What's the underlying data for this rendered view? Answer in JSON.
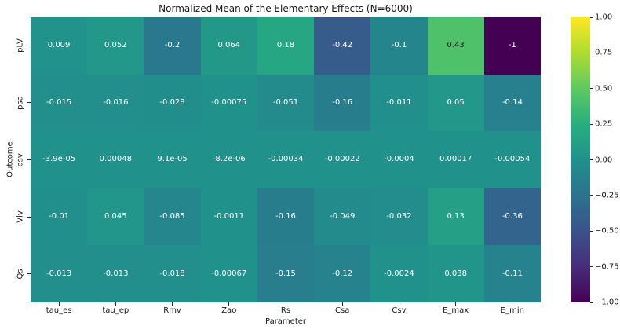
{
  "chart_data": {
    "type": "heatmap",
    "title": "Normalized Mean of the Elementary Effects (N=6000)",
    "xlabel": "Parameter",
    "ylabel": "Outcome",
    "x_categories": [
      "tau_es",
      "tau_ep",
      "Rmv",
      "Zao",
      "Rs",
      "Csa",
      "Csv",
      "E_max",
      "E_min"
    ],
    "y_categories": [
      "pLV",
      "psa",
      "psv",
      "Vlv",
      "Qs"
    ],
    "values": [
      [
        0.009,
        0.052,
        -0.2,
        0.064,
        0.18,
        -0.42,
        -0.1,
        0.43,
        -1
      ],
      [
        -0.015,
        -0.016,
        -0.028,
        -0.00075,
        -0.051,
        -0.16,
        -0.011,
        0.05,
        -0.14
      ],
      [
        -3.9e-05,
        0.00048,
        9.1e-05,
        -8.2e-06,
        -0.00034,
        -0.00022,
        -0.0004,
        0.00017,
        -0.00054
      ],
      [
        -0.01,
        0.045,
        -0.085,
        -0.0011,
        -0.16,
        -0.049,
        -0.032,
        0.13,
        -0.36
      ],
      [
        -0.013,
        -0.013,
        -0.018,
        -0.00067,
        -0.15,
        -0.12,
        -0.0024,
        0.038,
        -0.11
      ]
    ],
    "cell_labels": [
      [
        "0.009",
        "0.052",
        "-0.2",
        "0.064",
        "0.18",
        "-0.42",
        "-0.1",
        "0.43",
        "-1"
      ],
      [
        "-0.015",
        "-0.016",
        "-0.028",
        "-0.00075",
        "-0.051",
        "-0.16",
        "-0.011",
        "0.05",
        "-0.14"
      ],
      [
        "-3.9e-05",
        "0.00048",
        "9.1e-05",
        "-8.2e-06",
        "-0.00034",
        "-0.00022",
        "-0.0004",
        "0.00017",
        "-0.00054"
      ],
      [
        "-0.01",
        "0.045",
        "-0.085",
        "-0.0011",
        "-0.16",
        "-0.049",
        "-0.032",
        "0.13",
        "-0.36"
      ],
      [
        "-0.013",
        "-0.013",
        "-0.018",
        "-0.00067",
        "-0.15",
        "-0.12",
        "-0.0024",
        "0.038",
        "-0.11"
      ]
    ],
    "vmin": -1,
    "vmax": 1,
    "colormap": "viridis",
    "viridis_anchors": [
      "#440154",
      "#472d7b",
      "#3b528b",
      "#2c728e",
      "#21918c",
      "#28ae80",
      "#5ec962",
      "#addc30",
      "#fde725"
    ],
    "colorbar": {
      "tick_values": [
        1,
        0.75,
        0.5,
        0.25,
        0,
        -0.25,
        -0.5,
        -0.75,
        -1
      ],
      "tick_labels": [
        "1.00",
        "0.75",
        "0.50",
        "0.25",
        "0.00",
        "−0.25",
        "−0.50",
        "−0.75",
        "−1.00"
      ]
    },
    "annotation_text_colors": {
      "on_dark_cell": "#ffffff",
      "on_light_cell": "#262626"
    },
    "grid": false,
    "legend_position": "right-colorbar"
  }
}
